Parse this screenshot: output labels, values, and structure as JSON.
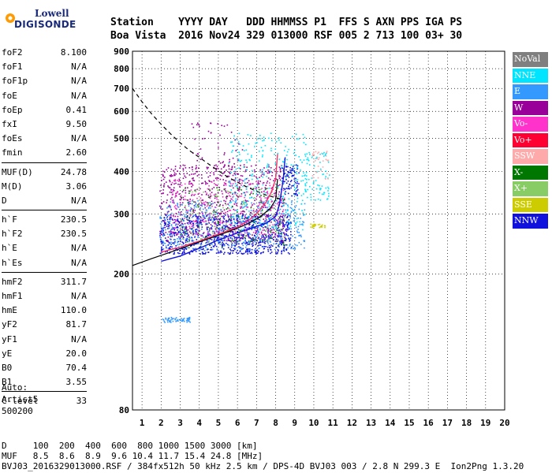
{
  "logo": {
    "line1": "Lowell",
    "line2": "DIGISONDE"
  },
  "header": {
    "line1": "Station    YYYY DAY   DDD HHMMSS P1  FFS S AXN PPS IGA PS",
    "line2": "Boa Vista  2016 Nov24 329 013000 RSF 005 2 713 100 03+ 30"
  },
  "params": {
    "group1": [
      {
        "name": "foF2",
        "value": "8.100"
      },
      {
        "name": "foF1",
        "value": "N/A"
      },
      {
        "name": "foF1p",
        "value": "N/A"
      },
      {
        "name": "foE",
        "value": "N/A"
      },
      {
        "name": "foEp",
        "value": "0.41"
      },
      {
        "name": "fxI",
        "value": "9.50"
      },
      {
        "name": "foEs",
        "value": "N/A"
      },
      {
        "name": "fmin",
        "value": "2.60"
      }
    ],
    "group2": [
      {
        "name": "MUF(D)",
        "value": "24.78"
      },
      {
        "name": "M(D)",
        "value": "3.06"
      },
      {
        "name": "D",
        "value": "N/A"
      }
    ],
    "group3": [
      {
        "name": "h`F",
        "value": "230.5"
      },
      {
        "name": "h`F2",
        "value": "230.5"
      },
      {
        "name": "h`E",
        "value": "N/A"
      },
      {
        "name": "h`Es",
        "value": "N/A"
      }
    ],
    "group4": [
      {
        "name": "hmF2",
        "value": "311.7"
      },
      {
        "name": "hmF1",
        "value": "N/A"
      },
      {
        "name": "hmE",
        "value": "110.0"
      },
      {
        "name": "yF2",
        "value": "81.7"
      },
      {
        "name": "yF1",
        "value": "N/A"
      },
      {
        "name": "yE",
        "value": "20.0"
      },
      {
        "name": "B0",
        "value": "70.4"
      },
      {
        "name": "B1",
        "value": "3.55"
      }
    ],
    "group5": [
      {
        "name": "C-level",
        "value": "33"
      }
    ]
  },
  "auto": {
    "line1": "Auto:",
    "line2": "Artist5",
    "line3": "500200"
  },
  "legend": [
    {
      "label": "NoVal",
      "color": "#7f7f7f"
    },
    {
      "label": "NNE",
      "color": "#00e5ff"
    },
    {
      "label": "E",
      "color": "#3399ff"
    },
    {
      "label": "W",
      "color": "#990099"
    },
    {
      "label": "Vo-",
      "color": "#ff33cc"
    },
    {
      "label": "Vo+",
      "color": "#ff0033"
    },
    {
      "label": "SSW",
      "color": "#ffaaaa"
    },
    {
      "label": "X-",
      "color": "#007700"
    },
    {
      "label": "X+",
      "color": "#88cc66"
    },
    {
      "label": "SSE",
      "color": "#cccc00"
    },
    {
      "label": "NNW",
      "color": "#1111dd"
    }
  ],
  "bottom": {
    "line1": "D     100  200  400  600  800 1000 1500 3000 [km]",
    "line2": "MUF   8.5  8.6  8.9  9.6 10.4 11.7 15.4 24.8 [MHz]",
    "line3": "BVJ03_2016329013000.RSF / 384fx512h 50 kHz 2.5 km / DPS-4D BVJ03 003 / 2.8 N 299.3 E  Ion2Png 1.3.20"
  },
  "chart_data": {
    "type": "scatter",
    "title": "",
    "xlabel": "",
    "ylabel": "",
    "xlim": [
      0.5,
      20
    ],
    "ylim": [
      80,
      900
    ],
    "y_scale": "log",
    "x_ticks": [
      1,
      2,
      3,
      4,
      5,
      6,
      7,
      8,
      9,
      10,
      11,
      12,
      13,
      14,
      15,
      16,
      17,
      18,
      19,
      20
    ],
    "y_ticks": [
      80,
      200,
      300,
      400,
      500,
      600,
      700,
      800,
      900
    ],
    "grid": true,
    "dashed_curve": {
      "x": [
        0.5,
        1.0,
        1.5,
        2.0,
        2.5,
        3.0,
        3.5,
        4.0,
        4.5,
        5.0,
        5.5,
        6.0,
        6.5,
        7.0,
        7.5,
        8.0,
        8.5
      ],
      "y": [
        700,
        640,
        590,
        550,
        515,
        485,
        460,
        440,
        420,
        402,
        385,
        372,
        360,
        350,
        341,
        335,
        330
      ]
    },
    "trace_o": {
      "x": [
        2.0,
        2.5,
        3.0,
        3.5,
        4.0,
        4.5,
        5.0,
        5.5,
        6.0,
        6.5,
        7.0,
        7.5,
        7.8,
        8.0,
        8.1
      ],
      "y": [
        232,
        236,
        240,
        245,
        250,
        256,
        262,
        268,
        275,
        285,
        300,
        325,
        350,
        380,
        450
      ]
    },
    "trace_x": {
      "x": [
        2.0,
        2.5,
        3.0,
        3.5,
        4.0,
        4.5,
        5.0,
        5.5,
        6.0,
        6.5,
        7.0,
        7.5,
        8.0,
        8.2,
        8.4,
        8.5
      ],
      "y": [
        218,
        222,
        226,
        232,
        238,
        245,
        252,
        258,
        264,
        270,
        276,
        282,
        295,
        320,
        380,
        440
      ]
    },
    "profile": {
      "x": [
        0.5,
        1.5,
        2.5,
        3.5,
        4.5,
        5.5,
        6.5,
        7.2,
        7.7,
        8.0,
        8.1
      ],
      "y": [
        212,
        222,
        232,
        243,
        254,
        266,
        280,
        295,
        311,
        330,
        380
      ]
    },
    "regions": [
      {
        "color": "#1111dd",
        "x": [
          1.9,
          8.8
        ],
        "y": [
          230,
          300
        ],
        "n": 900
      },
      {
        "color": "#990099",
        "x": [
          1.9,
          8.5
        ],
        "y": [
          250,
          420
        ],
        "n": 700
      },
      {
        "color": "#3399ff",
        "x": [
          1.9,
          9.5
        ],
        "y": [
          235,
          330
        ],
        "n": 500
      },
      {
        "color": "#00e5ff",
        "x": [
          5.5,
          9.6
        ],
        "y": [
          270,
          520
        ],
        "n": 300
      },
      {
        "color": "#ff33cc",
        "x": [
          2.5,
          8.5
        ],
        "y": [
          260,
          380
        ],
        "n": 250
      },
      {
        "color": "#007700",
        "x": [
          3.0,
          8.5
        ],
        "y": [
          240,
          360
        ],
        "n": 120
      },
      {
        "color": "#88cc66",
        "x": [
          3.0,
          8.5
        ],
        "y": [
          245,
          360
        ],
        "n": 120
      },
      {
        "color": "#3399ff",
        "x": [
          2.0,
          3.5
        ],
        "y": [
          145,
          150
        ],
        "n": 60
      },
      {
        "color": "#00e5ff",
        "x": [
          9.5,
          10.8
        ],
        "y": [
          330,
          460
        ],
        "n": 80
      },
      {
        "color": "#cccc00",
        "x": [
          9.8,
          10.6
        ],
        "y": [
          275,
          282
        ],
        "n": 25
      },
      {
        "color": "#ffaaaa",
        "x": [
          9.8,
          10.8
        ],
        "y": [
          380,
          460
        ],
        "n": 30
      },
      {
        "color": "#990099",
        "x": [
          3.5,
          6.5
        ],
        "y": [
          380,
          560
        ],
        "n": 60
      },
      {
        "color": "#1111dd",
        "x": [
          8.3,
          9.2
        ],
        "y": [
          340,
          420
        ],
        "n": 80
      }
    ]
  }
}
